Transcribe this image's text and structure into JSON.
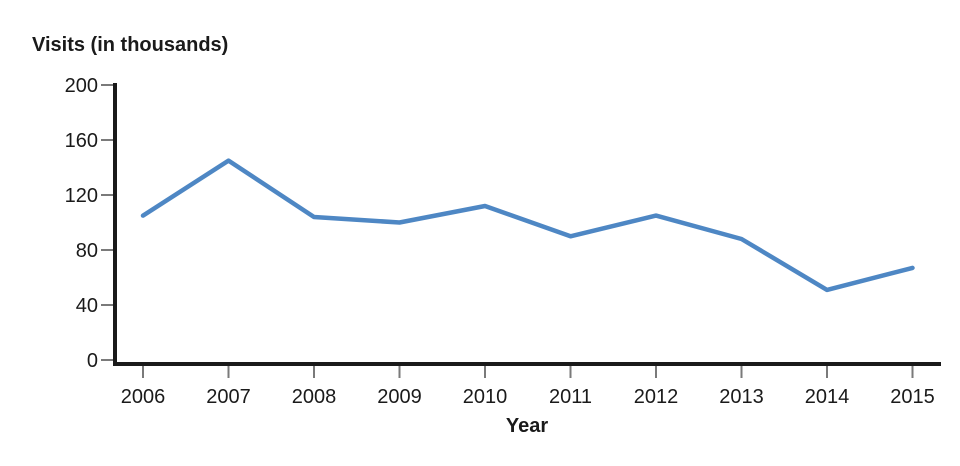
{
  "chart_data": {
    "type": "line",
    "title": "Visits (in thousands)",
    "xlabel": "Year",
    "ylabel": "Visits (in thousands)",
    "categories": [
      "2006",
      "2007",
      "2008",
      "2009",
      "2010",
      "2011",
      "2012",
      "2013",
      "2014",
      "2015"
    ],
    "series": [
      {
        "name": "Visits",
        "values": [
          105,
          145,
          104,
          100,
          112,
          90,
          105,
          88,
          51,
          67
        ]
      }
    ],
    "yticks": [
      0,
      40,
      80,
      120,
      160,
      200
    ],
    "ylim": [
      0,
      200
    ],
    "grid": false,
    "legend": "none",
    "line_color": "#4e87c4",
    "axis_color": "#1a1a1a",
    "tick_color": "#7a7a7a",
    "text_color": "#1a1a1a",
    "background_color": "#ffffff"
  }
}
